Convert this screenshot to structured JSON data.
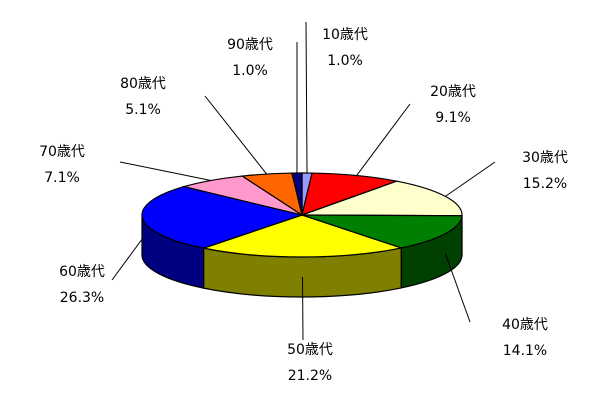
{
  "chart_data": {
    "type": "pie",
    "style": "3d",
    "start": "top",
    "direction": "clockwise",
    "slices": [
      {
        "label": "10歳代",
        "value": 1.0,
        "value_label": "1.0%",
        "color": "#9999FF",
        "side_color": "#4d4d80"
      },
      {
        "label": "20歳代",
        "value": 9.1,
        "value_label": "9.1%",
        "color": "#FF0000",
        "side_color": "#800000"
      },
      {
        "label": "30歳代",
        "value": 15.2,
        "value_label": "15.2%",
        "color": "#FFFFCC",
        "side_color": "#808066"
      },
      {
        "label": "40歳代",
        "value": 14.1,
        "value_label": "14.1%",
        "color": "#008000",
        "side_color": "#004000"
      },
      {
        "label": "50歳代",
        "value": 21.2,
        "value_label": "21.2%",
        "color": "#FFFF00",
        "side_color": "#808000"
      },
      {
        "label": "60歳代",
        "value": 26.3,
        "value_label": "26.3%",
        "color": "#0000FF",
        "side_color": "#000080"
      },
      {
        "label": "70歳代",
        "value": 7.1,
        "value_label": "7.1%",
        "color": "#FF99CC",
        "side_color": "#804d66"
      },
      {
        "label": "80歳代",
        "value": 5.1,
        "value_label": "5.1%",
        "color": "#FF6600",
        "side_color": "#803300"
      },
      {
        "label": "90歳代",
        "value": 1.0,
        "value_label": "1.0%",
        "color": "#000080",
        "side_color": "#000040"
      }
    ]
  }
}
